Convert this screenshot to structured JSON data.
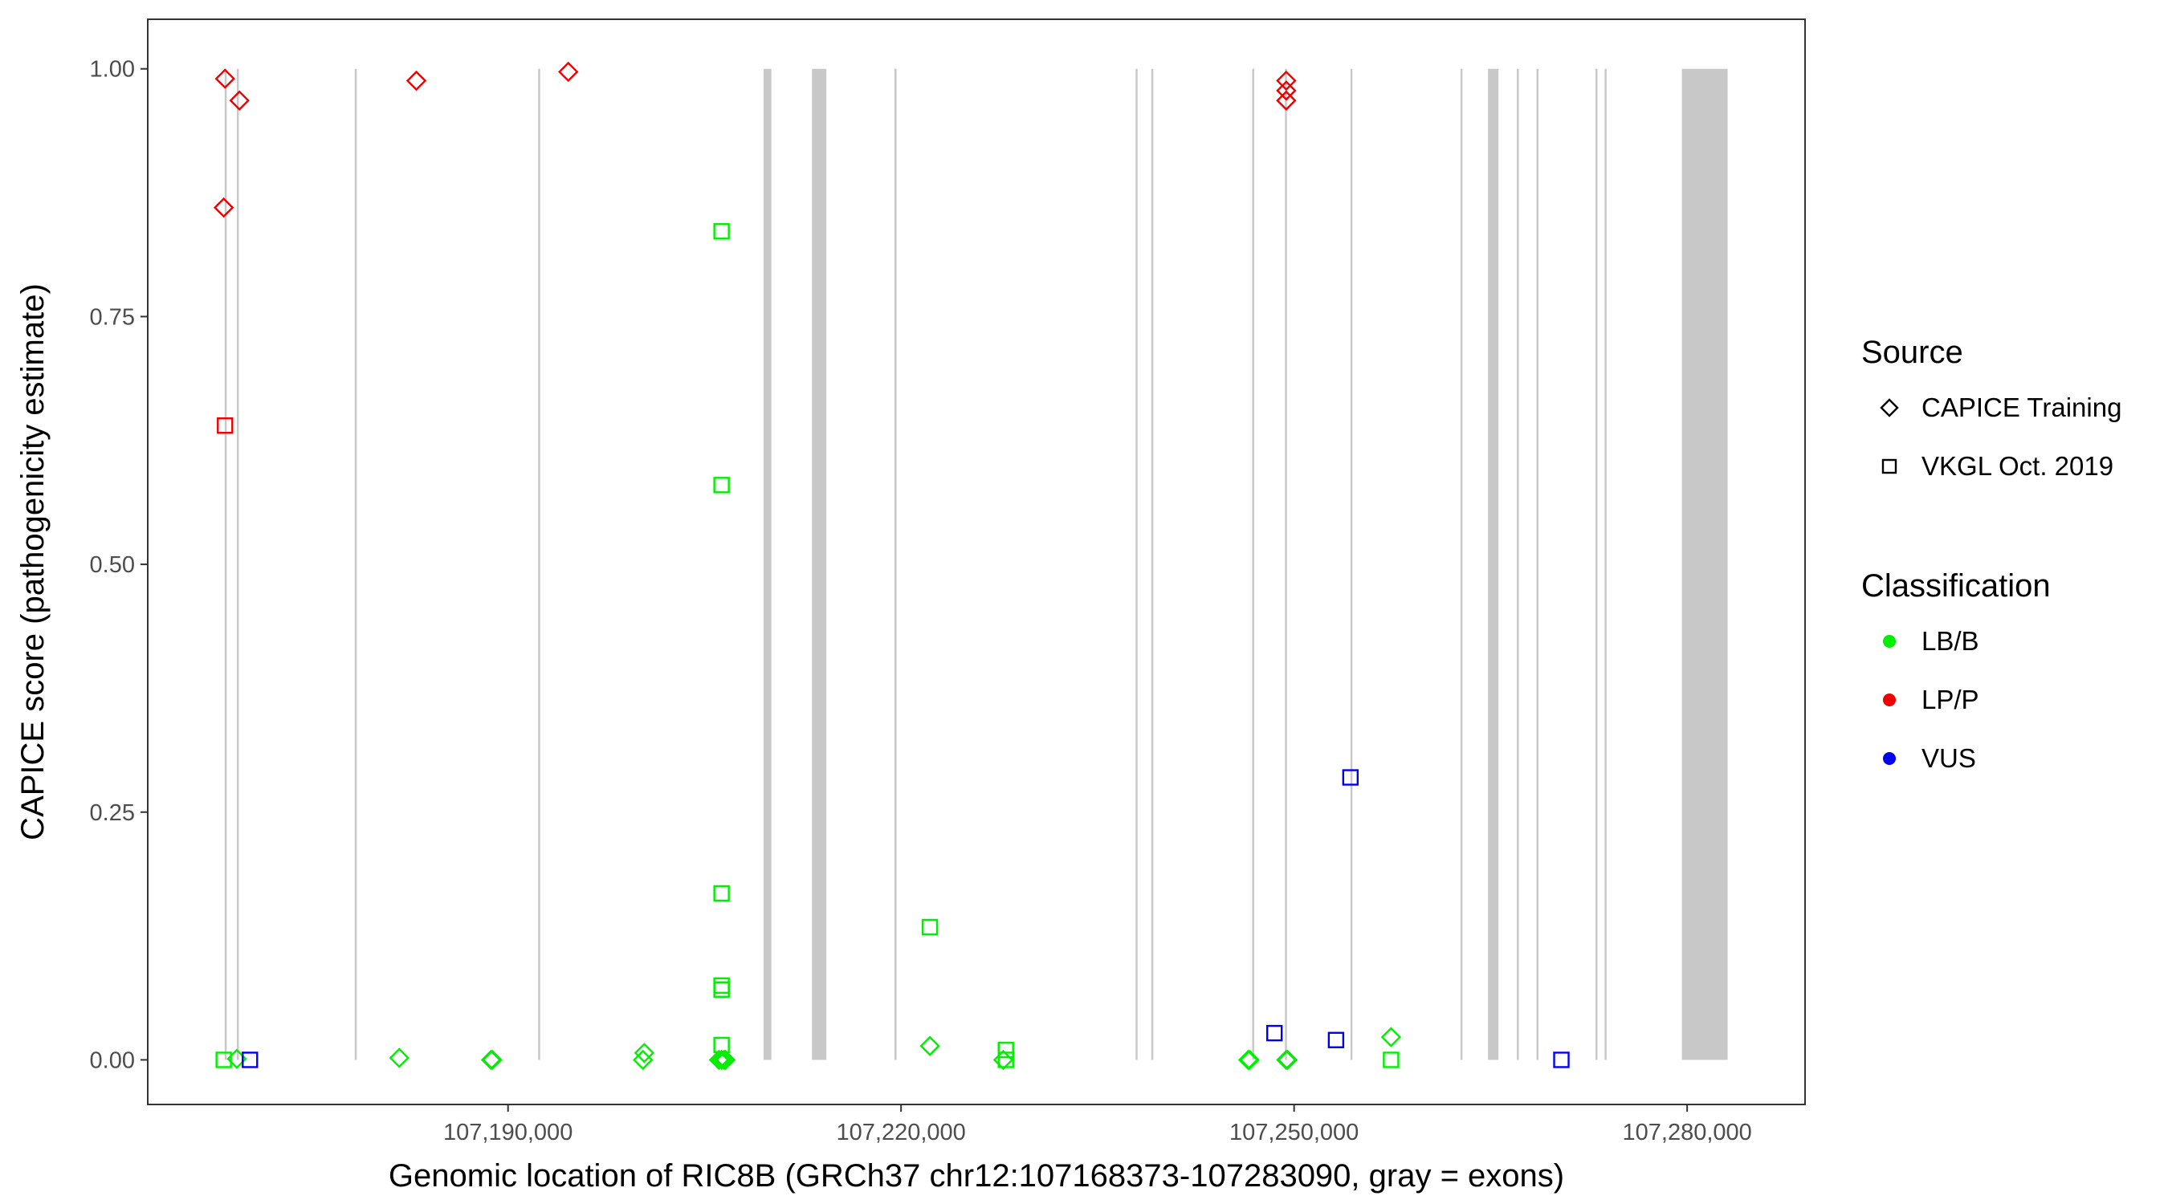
{
  "chart_data": {
    "type": "scatter",
    "title": "",
    "xlabel": "Genomic location of RIC8B (GRCh37 chr12:107168373-107283090, gray = exons)",
    "ylabel": "CAPICE score (pathogenicity estimate)",
    "xlim": [
      107162500,
      107289000
    ],
    "ylim": [
      -0.045,
      1.05
    ],
    "x_ticks": [
      107190000,
      107220000,
      107250000,
      107280000
    ],
    "x_tick_labels": [
      "107,190,000",
      "107,220,000",
      "107,250,000",
      "107,280,000"
    ],
    "y_ticks": [
      0,
      0.25,
      0.5,
      0.75,
      1.0
    ],
    "y_tick_labels": [
      "0.00",
      "0.25",
      "0.50",
      "0.75",
      "1.00"
    ],
    "grid": false,
    "exons": [
      [
        107168373,
        107168480
      ],
      [
        107169300,
        107169360
      ],
      [
        107178300,
        107178330
      ],
      [
        107192300,
        107192330
      ],
      [
        107209500,
        107210100
      ],
      [
        107213200,
        107214300
      ],
      [
        107219500,
        107219530
      ],
      [
        107237900,
        107237940
      ],
      [
        107239100,
        107239140
      ],
      [
        107246800,
        107246840
      ],
      [
        107249300,
        107249340
      ],
      [
        107254300,
        107254340
      ],
      [
        107262700,
        107262760
      ],
      [
        107264800,
        107265600
      ],
      [
        107267000,
        107267050
      ],
      [
        107268500,
        107268550
      ],
      [
        107273000,
        107273050
      ],
      [
        107273700,
        107273750
      ],
      [
        107279600,
        107283090
      ]
    ],
    "legend": {
      "position": "right",
      "source_title": "Source",
      "source_entries": [
        {
          "label": "CAPICE Training",
          "shape": "diamond"
        },
        {
          "label": "VKGL Oct. 2019",
          "shape": "square"
        }
      ],
      "class_title": "Classification",
      "class_entries": [
        {
          "label": "LB/B",
          "color": "#00ee00"
        },
        {
          "label": "LP/P",
          "color": "#ee0000"
        },
        {
          "label": "VUS",
          "color": "#0000ee"
        }
      ]
    },
    "series": [
      {
        "name": "CAPICE Training",
        "classification": "LP/P",
        "shape": "diamond",
        "color": "#ee0000",
        "x": [
          107168400,
          107169500,
          107168300,
          107183000,
          107194600,
          107249400,
          107249400,
          107249400
        ],
        "y": [
          0.99,
          0.968,
          0.86,
          0.988,
          0.997,
          0.988,
          0.978,
          0.968
        ]
      },
      {
        "name": "CAPICE Training",
        "classification": "LB/B",
        "shape": "diamond",
        "color": "#00ee00",
        "x": [
          107169300,
          107181700,
          107188700,
          107188800,
          107200400,
          107200300,
          107206100,
          107206300,
          107206500,
          107206600,
          107222200,
          107227800,
          107246500,
          107246600,
          107249400,
          107249500,
          107257400
        ],
        "y": [
          0.001,
          0.002,
          0.0,
          0.0,
          0.007,
          0.0,
          0.0,
          0.0,
          0.0,
          0.0,
          0.014,
          0.0,
          0.0,
          0.0,
          0.0,
          0.0,
          0.023
        ]
      },
      {
        "name": "VKGL Oct. 2019",
        "classification": "LP/P",
        "shape": "square",
        "color": "#ee0000",
        "x": [
          107168400
        ],
        "y": [
          0.64
        ]
      },
      {
        "name": "VKGL Oct. 2019",
        "classification": "LB/B",
        "shape": "square",
        "color": "#00ee00",
        "x": [
          107206300,
          107206300,
          107206300,
          107206300,
          107206300,
          107206300,
          107168300,
          107222200,
          107228000,
          107228000,
          107257400
        ],
        "y": [
          0.836,
          0.58,
          0.168,
          0.075,
          0.071,
          0.015,
          0.0,
          0.134,
          0.01,
          0.0,
          0.0
        ]
      },
      {
        "name": "VKGL Oct. 2019",
        "classification": "VUS",
        "shape": "square",
        "color": "#0000ee",
        "x": [
          107170300,
          107248500,
          107253200,
          107254300,
          107270400
        ],
        "y": [
          0.0,
          0.027,
          0.02,
          0.285,
          0.0
        ]
      }
    ]
  }
}
